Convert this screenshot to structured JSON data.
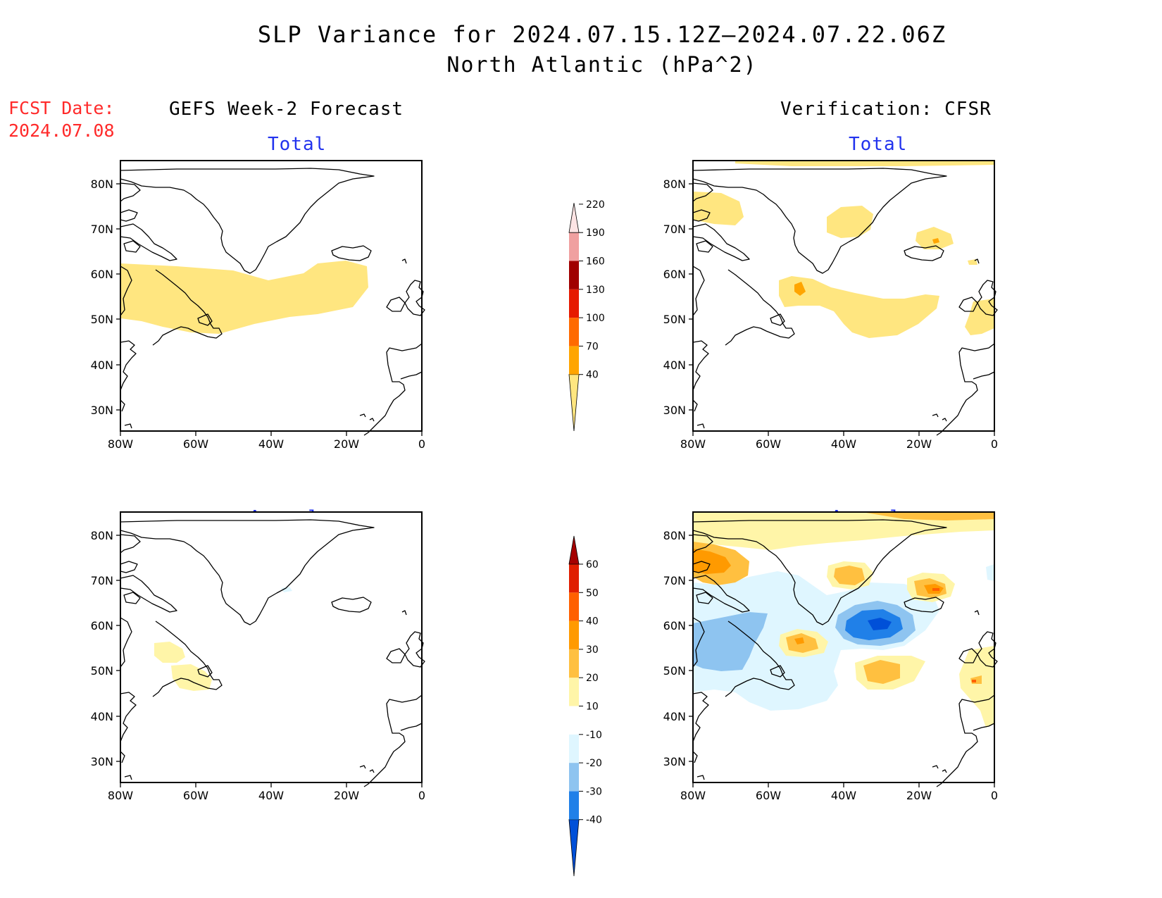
{
  "title": "SLP Variance for 2024.07.15.12Z–2024.07.22.06Z",
  "subtitle": "North Atlantic (hPa^2)",
  "fcst_label": "FCST Date:",
  "fcst_date": "2024.07.08",
  "columns": {
    "left": "GEFS Week-2 Forecast",
    "right": "Verification: CFSR"
  },
  "panel_titles": {
    "total": "Total",
    "anomaly": "Anomaly"
  },
  "axes": {
    "lat_labels": [
      "80N",
      "70N",
      "60N",
      "50N",
      "40N",
      "30N"
    ],
    "lon_labels": [
      "80W",
      "60W",
      "40W",
      "20W",
      "0"
    ]
  },
  "colorbars": {
    "total": {
      "levels": [
        "40",
        "70",
        "100",
        "130",
        "160",
        "190",
        "220"
      ],
      "colors": [
        "#ffe680",
        "#ffa500",
        "#ff6a00",
        "#e61a00",
        "#a00000",
        "#f0a0a0",
        "#fde4e4"
      ]
    },
    "anomaly": {
      "levels": [
        "-40",
        "-30",
        "-20",
        "-10",
        "10",
        "20",
        "30",
        "40",
        "50",
        "60"
      ],
      "colors": [
        "#0050d8",
        "#2080e8",
        "#8ec4f0",
        "#dff6ff",
        "#ffffff",
        "#fff5a8",
        "#ffc040",
        "#ff9a00",
        "#ff6000",
        "#e01e00",
        "#a50000"
      ]
    }
  },
  "icons": [
    "coastline-map"
  ]
}
